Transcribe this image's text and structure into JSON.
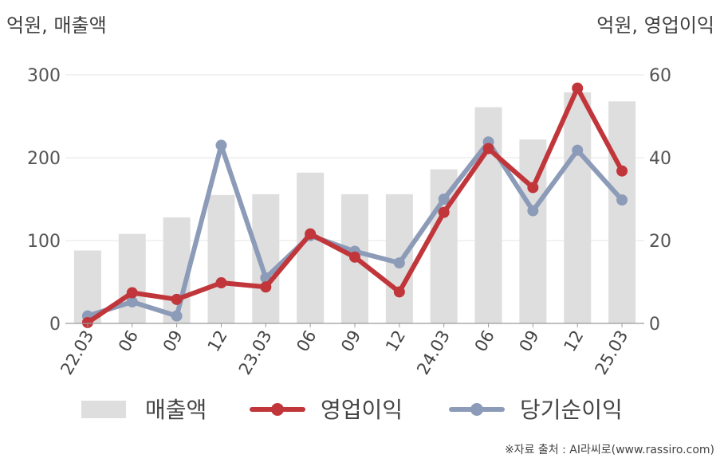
{
  "left_unit": "억원, 매출액",
  "right_unit": "억원, 영업이익",
  "source": "※자료 출처 : AI라씨로(www.rassiro.com)",
  "chart_data": {
    "type": "bar",
    "categories": [
      "22.03",
      "06",
      "09",
      "12",
      "23.03",
      "06",
      "09",
      "12",
      "24.03",
      "06",
      "09",
      "12",
      "25.03"
    ],
    "left_axis": {
      "ticks": [
        0,
        100,
        200,
        300
      ],
      "ylim": [
        0,
        300
      ]
    },
    "right_axis": {
      "ticks": [
        0,
        20,
        40,
        60
      ],
      "ylim": [
        0,
        60
      ]
    },
    "grid": true,
    "legend_position": "bottom",
    "series": [
      {
        "name": "매출액",
        "kind": "bar",
        "axis": "left",
        "color": "#dedede",
        "values": [
          88,
          108,
          128,
          155,
          156,
          182,
          156,
          156,
          186,
          261,
          222,
          279,
          268
        ]
      },
      {
        "name": "영업이익",
        "kind": "line",
        "axis": "right",
        "color": "#c0363a",
        "values": [
          0.2,
          7.4,
          5.8,
          9.8,
          8.8,
          21.6,
          16.0,
          7.6,
          26.8,
          42.2,
          32.8,
          56.8,
          36.8
        ]
      },
      {
        "name": "당기순이익",
        "kind": "line",
        "axis": "right",
        "color": "#8c9bb8",
        "values": [
          1.8,
          5.2,
          1.8,
          43.0,
          11.0,
          21.2,
          17.4,
          14.6,
          30.0,
          43.8,
          27.2,
          41.8,
          29.8
        ]
      }
    ]
  }
}
